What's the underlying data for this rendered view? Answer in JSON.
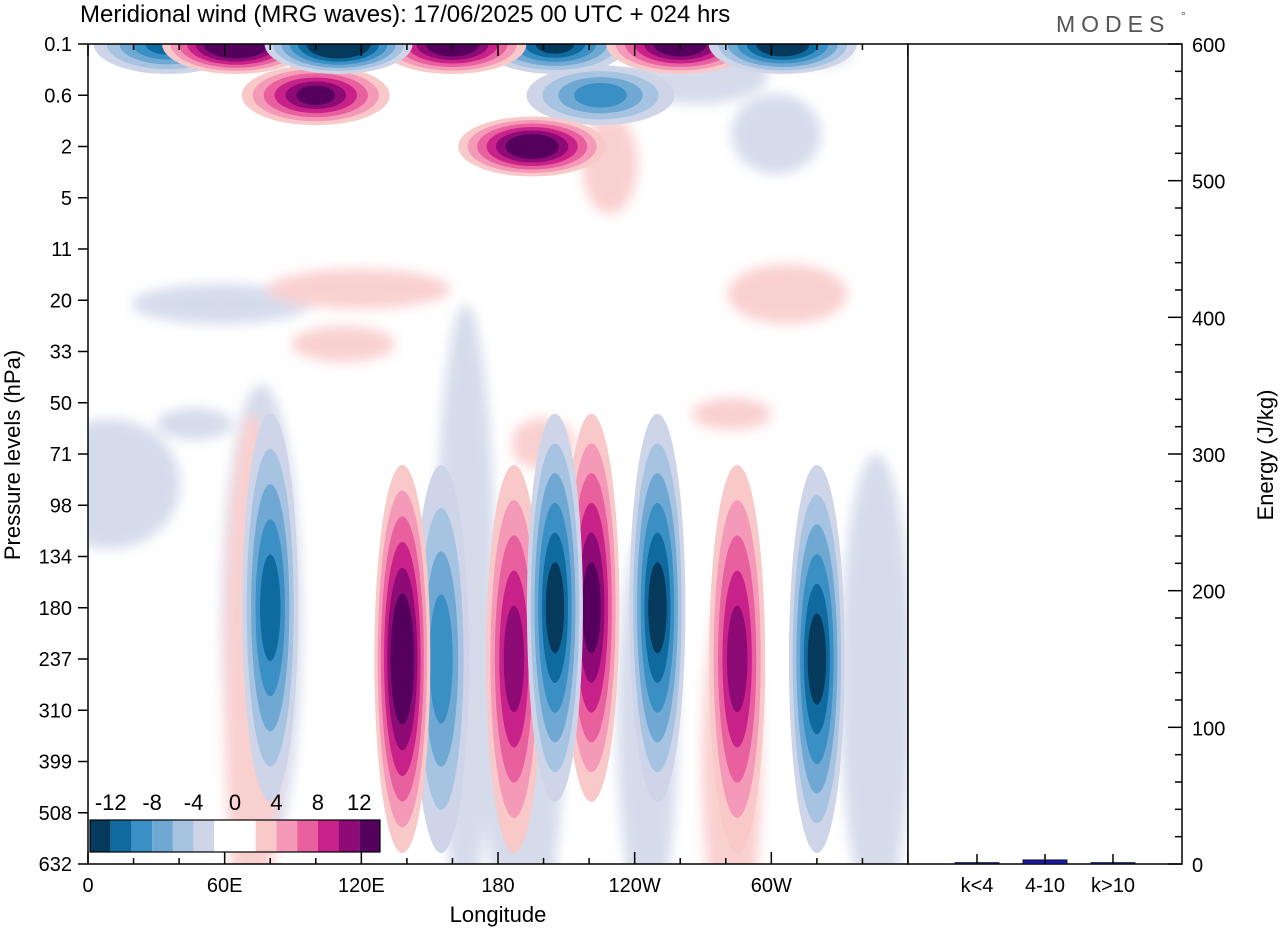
{
  "header": {
    "title": "Meridional wind (MRG waves):  17/06/2025  00 UTC  + 024 hrs",
    "brand": "MODES",
    "brand_mark": "°"
  },
  "chart_data": [
    {
      "type": "heatmap",
      "title": "Meridional wind (MRG waves):  17/06/2025  00 UTC  + 024 hrs",
      "xlabel": "Longitude",
      "ylabel": "Pressure levels (hPa)",
      "x_ticks": [
        "0",
        "60E",
        "120E",
        "180",
        "120W",
        "60W"
      ],
      "y_ticks": [
        "0.1",
        "0.6",
        "2",
        "5",
        "11",
        "20",
        "33",
        "50",
        "71",
        "98",
        "134",
        "180",
        "237",
        "310",
        "399",
        "508",
        "632"
      ],
      "y_order": "top-to-bottom",
      "colorbar": {
        "labels": [
          "-12",
          "-8",
          "-4",
          "0",
          "4",
          "8",
          "12"
        ],
        "levels": [
          -14,
          -12,
          -10,
          -8,
          -6,
          -4,
          -2,
          0,
          2,
          4,
          6,
          8,
          10,
          12,
          14
        ],
        "colors": [
          "#053a5c",
          "#0f6b9f",
          "#3a8fc4",
          "#6fa8d2",
          "#a6c4e1",
          "#ced5e8",
          "#ffffff",
          "#ffffff",
          "#f9c8c8",
          "#f49ab8",
          "#e8609e",
          "#c8218a",
          "#8e0b76",
          "#56005e"
        ]
      },
      "features": [
        {
          "lon": 35,
          "level": "0.1",
          "value": -10
        },
        {
          "lon": 65,
          "level": "0.1",
          "value": 16
        },
        {
          "lon": 100,
          "level": "0.6",
          "value": 12
        },
        {
          "lon": 110,
          "level": "0.1",
          "value": -16
        },
        {
          "lon": 160,
          "level": "0.1",
          "value": 14
        },
        {
          "lon": 195,
          "level": "2",
          "value": 14
        },
        {
          "lon": 205,
          "level": "0.1",
          "value": -12
        },
        {
          "lon": 225,
          "level": "0.6",
          "value": -8
        },
        {
          "lon": 260,
          "level": "0.1",
          "value": 14
        },
        {
          "lon": 305,
          "level": "0.1",
          "value": -14
        },
        {
          "lon": 138,
          "level": "237",
          "value": 14
        },
        {
          "lon": 155,
          "level": "237",
          "value": -8
        },
        {
          "lon": 80,
          "level": "180",
          "value": -10
        },
        {
          "lon": 187,
          "level": "237",
          "value": 10
        },
        {
          "lon": 205,
          "level": "180",
          "value": -12
        },
        {
          "lon": 221,
          "level": "180",
          "value": 11
        },
        {
          "lon": 250,
          "level": "180",
          "value": -11
        },
        {
          "lon": 285,
          "level": "237",
          "value": 10
        },
        {
          "lon": 320,
          "level": "237",
          "value": -11
        }
      ]
    },
    {
      "type": "bar",
      "categories": [
        "k<4",
        "4-10",
        "k>10"
      ],
      "values": [
        1,
        3,
        1
      ],
      "ylabel": "Energy (J/kg)",
      "ylim": [
        0,
        600
      ],
      "y_ticks": [
        0,
        100,
        200,
        300,
        400,
        500,
        600
      ],
      "bar_color": "#1a1aa8"
    }
  ]
}
